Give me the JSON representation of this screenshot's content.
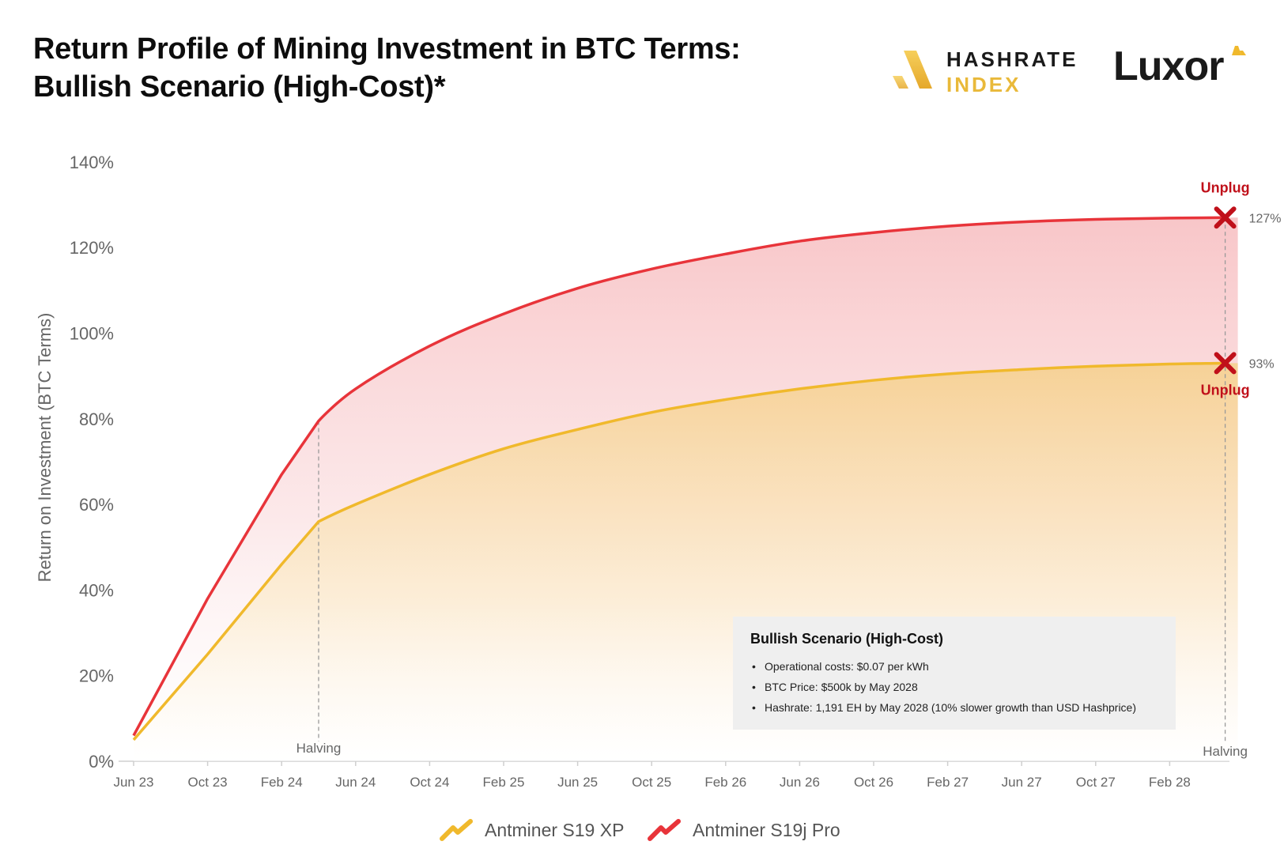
{
  "title_lines": [
    "Return Profile of Mining Investment in BTC Terms:",
    "Bullish Scenario (High-Cost)*"
  ],
  "logos": {
    "hashrate_index": [
      "HASHRATE",
      "INDEX"
    ],
    "luxor": "Luxor"
  },
  "colors": {
    "xp": "#f0b92c",
    "pro": "#e8343a",
    "unplug": "#c0101a",
    "axis_text": "#666666"
  },
  "chart_data": {
    "type": "area",
    "ylabel": "Return on Investment (BTC Terms)",
    "ylim": [
      0,
      140
    ],
    "y_ticks": [
      "0%",
      "20%",
      "40%",
      "60%",
      "80%",
      "100%",
      "120%",
      "140%"
    ],
    "y_tick_values": [
      0,
      20,
      40,
      60,
      80,
      100,
      120,
      140
    ],
    "x_ticks": [
      "Jun 23",
      "Oct 23",
      "Feb 24",
      "Jun 24",
      "Oct 24",
      "Feb 25",
      "Jun 25",
      "Oct 25",
      "Feb 26",
      "Jun 26",
      "Oct 26",
      "Feb 27",
      "Jun 27",
      "Oct 27",
      "Feb 28"
    ],
    "x": [
      "Jun 23",
      "Oct 23",
      "Feb 24",
      "Apr 24",
      "Jun 24",
      "Oct 24",
      "Feb 25",
      "Jun 25",
      "Oct 25",
      "Feb 26",
      "Jun 26",
      "Oct 26",
      "Feb 27",
      "Jun 27",
      "Oct 27",
      "Feb 28",
      "May 28"
    ],
    "x_months": [
      0,
      4,
      8,
      10,
      12,
      16,
      20,
      24,
      28,
      32,
      36,
      40,
      44,
      48,
      52,
      56,
      59
    ],
    "series": [
      {
        "name": "Antminer S19 XP",
        "color": "#f0b92c",
        "values": [
          5,
          25,
          46,
          56,
          60,
          67,
          73,
          77.5,
          81.5,
          84.5,
          87,
          89,
          90.5,
          91.5,
          92.3,
          92.8,
          93
        ]
      },
      {
        "name": "Antminer S19j Pro",
        "color": "#e8343a",
        "values": [
          6,
          38,
          67,
          79.5,
          87,
          97,
          104.5,
          110.5,
          115,
          118.5,
          121.5,
          123.5,
          125,
          126,
          126.6,
          126.9,
          127
        ]
      }
    ],
    "annotations": {
      "halving_label": "Halving",
      "halving_months": [
        10,
        59
      ],
      "unplug_label": "Unplug",
      "end_values": [
        "127%",
        "93%"
      ]
    },
    "legend": "bottom-center",
    "grid": false
  },
  "infobox": {
    "title": "Bullish Scenario (High-Cost)",
    "items": [
      "Operational costs: $0.07 per kWh",
      "BTC Price: $500k by May 2028",
      "Hashrate: 1,191 EH by May 2028 (10% slower growth than USD Hashprice)"
    ]
  },
  "legend_labels": [
    "Antminer S19 XP",
    "Antminer S19j Pro"
  ]
}
